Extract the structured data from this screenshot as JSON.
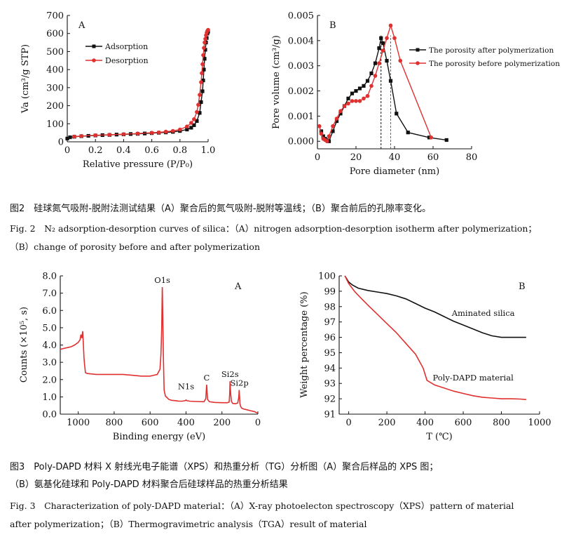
{
  "fig2": {
    "caption_cn": "图2　硅球氮气吸附-脱附法测试结果（A）聚合后的氮气吸附-脱附等温线；（B）聚合前后的孔隙率变化。",
    "caption_en_line1": "Fig. 2　N₂ adsorption-desorption curves of silica：（A）nitrogen adsorption-desorption isotherm after polymerization；",
    "caption_en_line2": "（B）change of porosity before and after polymerization"
  },
  "fig3": {
    "caption_cn_line1": "图3　Poly-DAPD 材料 X 射线光电子能谱（XPS）和热重分析（TG）分析图（A）聚合后样品的 XPS 图；",
    "caption_cn_line2": "（B）氨基化硅球和 Poly-DAPD 材料聚合后硅球样品的热重分析结果",
    "caption_en_line1": "Fig. 3　Characterization of poly-DAPD material：（A）X-ray photoelecton spectroscopy（XPS）pattern of material",
    "caption_en_line2": "after polymerization；（B）Thermogravimetric analysis（TGA）result of material"
  },
  "chart_data": [
    {
      "id": "fig2A",
      "type": "line",
      "panel_label": "A",
      "xlabel": "Relative pressure (P/P₀)",
      "ylabel": "Va (cm³/g STP)",
      "xlim": [
        0,
        1.0
      ],
      "ylim": [
        0,
        700
      ],
      "xticks": [
        0,
        0.2,
        0.4,
        0.6,
        0.8,
        1.0
      ],
      "xtick_labels": [
        "0",
        "0.2",
        "0.4",
        "0.6",
        "0.8",
        "1.0"
      ],
      "yticks": [
        0,
        100,
        200,
        300,
        400,
        500,
        600,
        700
      ],
      "ytick_labels": [
        "0",
        "100",
        "200",
        "300",
        "400",
        "500",
        "600",
        "700"
      ],
      "legend_position": "top-left",
      "series": [
        {
          "name": "Adsorption",
          "color": "#111111",
          "marker": "square",
          "x": [
            0.0,
            0.02,
            0.05,
            0.1,
            0.15,
            0.2,
            0.25,
            0.3,
            0.35,
            0.4,
            0.45,
            0.5,
            0.55,
            0.6,
            0.65,
            0.7,
            0.75,
            0.8,
            0.85,
            0.88,
            0.9,
            0.92,
            0.94,
            0.95,
            0.96,
            0.965,
            0.97,
            0.975,
            0.98,
            0.985,
            0.99,
            0.995,
            1.0
          ],
          "y": [
            18,
            25,
            28,
            31,
            33,
            35,
            37,
            38,
            40,
            41,
            43,
            44,
            46,
            48,
            50,
            52,
            55,
            60,
            68,
            78,
            92,
            115,
            160,
            220,
            280,
            340,
            400,
            460,
            510,
            550,
            575,
            600,
            610
          ]
        },
        {
          "name": "Desorption",
          "color": "#e03030",
          "marker": "circle",
          "x": [
            1.0,
            0.995,
            0.99,
            0.985,
            0.98,
            0.975,
            0.97,
            0.965,
            0.96,
            0.955,
            0.95,
            0.94,
            0.93,
            0.92,
            0.9,
            0.88,
            0.85,
            0.8,
            0.75,
            0.7,
            0.65,
            0.6,
            0.5,
            0.4,
            0.3,
            0.2,
            0.1,
            0.05
          ],
          "y": [
            620,
            615,
            605,
            590,
            570,
            550,
            520,
            480,
            430,
            380,
            330,
            260,
            205,
            165,
            125,
            105,
            85,
            68,
            60,
            56,
            52,
            50,
            46,
            42,
            39,
            36,
            32,
            29
          ]
        }
      ]
    },
    {
      "id": "fig2B",
      "type": "line",
      "panel_label": "B",
      "xlabel": "Pore diameter (nm)",
      "ylabel": "Pore volume (cm³/g)",
      "xlim": [
        0,
        80
      ],
      "ylim": [
        -0.0003,
        0.005
      ],
      "xticks": [
        0,
        20,
        40,
        60,
        80
      ],
      "xtick_labels": [
        "0",
        "20",
        "40",
        "60",
        "80"
      ],
      "yticks": [
        0,
        0.001,
        0.002,
        0.003,
        0.004,
        0.005
      ],
      "ytick_labels": [
        "0.000",
        "0.001",
        "0.002",
        "0.003",
        "0.004",
        "0.005"
      ],
      "legend_position": "top-right",
      "vlines": [
        {
          "x": 33,
          "color": "#111111"
        },
        {
          "x": 38,
          "color": "#e03030"
        }
      ],
      "series": [
        {
          "name": "The porosity after polymerization",
          "color": "#111111",
          "marker": "square",
          "x": [
            2,
            3,
            4,
            5,
            6,
            8,
            10,
            12,
            14,
            16,
            18,
            20,
            22,
            24,
            26,
            28,
            30,
            32,
            33,
            34,
            36,
            38,
            41,
            47,
            58,
            67
          ],
          "y": [
            0.0004,
            0.0002,
            0.0001,
            5e-05,
            0.0,
            0.0004,
            0.0008,
            0.0011,
            0.0014,
            0.0017,
            0.0019,
            0.002,
            0.0021,
            0.0022,
            0.0024,
            0.0027,
            0.0031,
            0.0037,
            0.0041,
            0.0039,
            0.0032,
            0.0024,
            0.0011,
            0.00035,
            0.00015,
            5e-05
          ]
        },
        {
          "name": "The porosity before polymerization",
          "color": "#e03030",
          "marker": "circle",
          "x": [
            1,
            2,
            3,
            4,
            5,
            6,
            8,
            10,
            12,
            14,
            16,
            18,
            20,
            22,
            24,
            26,
            28,
            30,
            32,
            34,
            36,
            38,
            40,
            43,
            59
          ],
          "y": [
            0.0006,
            0.0003,
            0.0001,
            5e-05,
            0.0,
            0.0002,
            0.0006,
            0.0009,
            0.0012,
            0.0014,
            0.0015,
            0.0016,
            0.0016,
            0.0016,
            0.0017,
            0.0018,
            0.0022,
            0.0026,
            0.0031,
            0.0036,
            0.0041,
            0.0046,
            0.0041,
            0.0032,
            0.00015
          ]
        }
      ]
    },
    {
      "id": "fig3A",
      "type": "line",
      "panel_label": "A",
      "xlabel": "Binding energy (eV)",
      "ylabel": "Counts (×10⁵, s)",
      "xlim": [
        1100,
        0
      ],
      "ylim": [
        0,
        8.0
      ],
      "xticks": [
        1000,
        800,
        600,
        400,
        200,
        0
      ],
      "xtick_labels": [
        "1000",
        "800",
        "600",
        "400",
        "200",
        "0"
      ],
      "yticks": [
        0,
        1.0,
        2.0,
        3.0,
        4.0,
        5.0,
        6.0,
        7.0,
        8.0
      ],
      "ytick_labels": [
        "0.0",
        "1.0",
        "2.0",
        "3.0",
        "4.0",
        "5.0",
        "6.0",
        "7.0",
        "8.0"
      ],
      "peak_labels": [
        {
          "text": "O1s",
          "x": 532,
          "y": 7.35
        },
        {
          "text": "N1s",
          "x": 400,
          "y": 1.2
        },
        {
          "text": "C",
          "x": 285,
          "y": 1.7
        },
        {
          "text": "Si2s",
          "x": 155,
          "y": 1.9
        },
        {
          "text": "Si2p",
          "x": 103,
          "y": 1.4
        }
      ],
      "series": [
        {
          "name": "",
          "color": "#e03030",
          "x": [
            1100,
            1080,
            1060,
            1040,
            1020,
            1000,
            990,
            985,
            980,
            975,
            972,
            968,
            965,
            960,
            950,
            900,
            850,
            800,
            750,
            700,
            650,
            600,
            580,
            560,
            545,
            540,
            535,
            532,
            529,
            526,
            522,
            515,
            505,
            495,
            480,
            460,
            440,
            420,
            405,
            400,
            395,
            380,
            340,
            300,
            290,
            287,
            285,
            283,
            280,
            270,
            240,
            200,
            170,
            160,
            157,
            155,
            152,
            148,
            140,
            125,
            112,
            106,
            104,
            102,
            100,
            96,
            90,
            80,
            60,
            40,
            20,
            10,
            0
          ],
          "y": [
            3.75,
            3.8,
            3.85,
            3.9,
            4.0,
            4.15,
            4.3,
            4.6,
            4.4,
            4.8,
            4.2,
            3.3,
            2.9,
            2.4,
            2.35,
            2.3,
            2.3,
            2.3,
            2.3,
            2.25,
            2.2,
            2.2,
            2.25,
            2.3,
            2.6,
            3.4,
            5.0,
            7.35,
            5.5,
            3.2,
            1.4,
            1.05,
            0.95,
            0.85,
            0.8,
            0.78,
            0.75,
            0.75,
            0.78,
            0.82,
            0.78,
            0.75,
            0.73,
            0.72,
            0.9,
            1.4,
            1.7,
            1.4,
            0.85,
            0.72,
            0.68,
            0.66,
            0.66,
            0.7,
            1.2,
            1.9,
            1.3,
            0.75,
            0.62,
            0.6,
            0.65,
            1.0,
            1.4,
            1.0,
            0.6,
            0.45,
            0.35,
            0.3,
            0.25,
            0.2,
            0.15,
            0.1,
            0.05
          ]
        }
      ]
    },
    {
      "id": "fig3B",
      "type": "line",
      "panel_label": "B",
      "xlabel": "T (℃)",
      "ylabel": "Weight percentage (%)",
      "xlim": [
        -50,
        1000
      ],
      "ylim": [
        91,
        100
      ],
      "xticks": [
        0,
        200,
        400,
        600,
        800,
        1000
      ],
      "xtick_labels": [
        "0",
        "200",
        "400",
        "600",
        "800",
        "1000"
      ],
      "yticks": [
        91,
        92,
        93,
        94,
        95,
        96,
        97,
        98,
        99,
        100
      ],
      "ytick_labels": [
        "91",
        "92",
        "93",
        "94",
        "95",
        "96",
        "97",
        "98",
        "99",
        "100"
      ],
      "series": [
        {
          "name": "Aminated silica",
          "color": "#111111",
          "x": [
            -20,
            0,
            20,
            50,
            100,
            150,
            200,
            250,
            300,
            350,
            400,
            450,
            500,
            550,
            600,
            650,
            700,
            750,
            800,
            850,
            900,
            930
          ],
          "y": [
            100.0,
            99.6,
            99.4,
            99.2,
            99.05,
            98.95,
            98.85,
            98.7,
            98.5,
            98.2,
            97.9,
            97.65,
            97.35,
            97.05,
            96.8,
            96.55,
            96.3,
            96.1,
            96.0,
            96.0,
            96.0,
            96.0
          ]
        },
        {
          "name": "Poly-DAPD material",
          "color": "#e03030",
          "x": [
            -20,
            0,
            30,
            60,
            100,
            150,
            200,
            250,
            300,
            350,
            390,
            410,
            450,
            500,
            550,
            600,
            650,
            700,
            750,
            800,
            850,
            900,
            930
          ],
          "y": [
            100.0,
            99.5,
            99.0,
            98.6,
            98.1,
            97.5,
            96.9,
            96.3,
            95.6,
            94.9,
            94.0,
            93.2,
            92.9,
            92.7,
            92.5,
            92.35,
            92.2,
            92.1,
            92.05,
            92.0,
            92.0,
            91.98,
            91.95
          ]
        }
      ],
      "series_labels": [
        {
          "text": "Aminated silica",
          "x": 540,
          "y": 97.4
        },
        {
          "text": "Poly-DAPD material",
          "x": 440,
          "y": 93.2
        }
      ]
    }
  ]
}
